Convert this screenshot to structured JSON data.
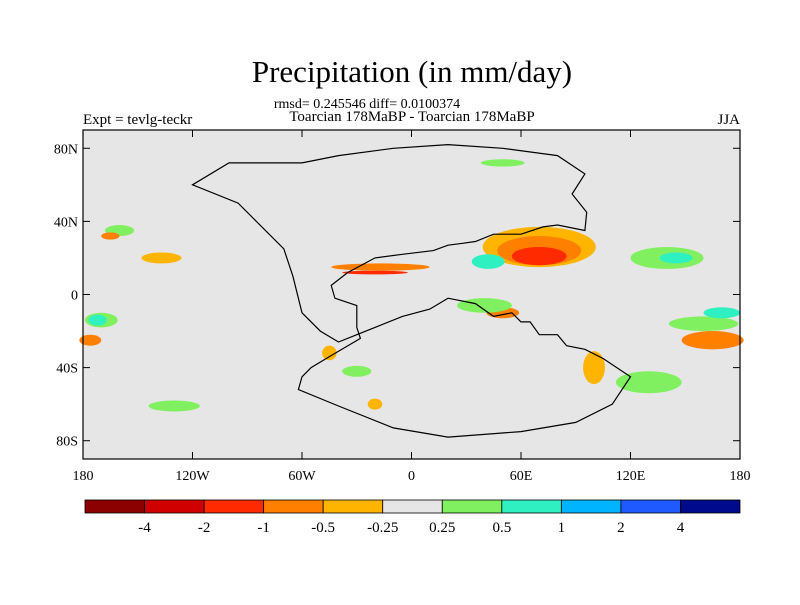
{
  "chart_data": {
    "type": "heatmap",
    "title": "Precipitation (in mm/day)",
    "stats_line": "rmsd= 0.245546 diff= 0.0100374",
    "subtitle": "Toarcian 178MaBP - Toarcian 178MaBP",
    "left_label": "Expt = tevlg-teckr",
    "right_label": "JJA",
    "xlim": [
      -180,
      180
    ],
    "ylim": [
      -90,
      90
    ],
    "x_ticks": [
      {
        "value": -180,
        "label": "180"
      },
      {
        "value": -120,
        "label": "120W"
      },
      {
        "value": -60,
        "label": "60W"
      },
      {
        "value": 0,
        "label": "0"
      },
      {
        "value": 60,
        "label": "60E"
      },
      {
        "value": 120,
        "label": "120E"
      },
      {
        "value": 180,
        "label": "180"
      }
    ],
    "y_ticks": [
      {
        "value": 80,
        "label": "80N"
      },
      {
        "value": 40,
        "label": "40N"
      },
      {
        "value": 0,
        "label": "0"
      },
      {
        "value": -40,
        "label": "40S"
      },
      {
        "value": -80,
        "label": "80S"
      }
    ],
    "colorbar": {
      "colors": [
        "#8b0000",
        "#d10000",
        "#ff2a00",
        "#ff7f00",
        "#ffb400",
        "#e6e6e6",
        "#80f060",
        "#2ef0c0",
        "#00b4ff",
        "#1f5aff",
        "#000a8c"
      ],
      "levels": [
        "-4",
        "-2",
        "-1",
        "-0.5",
        "-0.25",
        "0.25",
        "0.5",
        "1",
        "2",
        "4"
      ]
    },
    "anomaly_regions": [
      {
        "id": "n-atl-neg1",
        "center": [
          -17,
          15
        ],
        "radius": [
          27,
          2
        ],
        "color": "#ff7f00"
      },
      {
        "id": "n-atl-neg2",
        "center": [
          -20,
          12
        ],
        "radius": [
          18,
          1
        ],
        "color": "#ff2a00"
      },
      {
        "id": "n-pac-neg",
        "center": [
          -137,
          20
        ],
        "radius": [
          11,
          3
        ],
        "color": "#ffb400"
      },
      {
        "id": "n-pac-pos",
        "center": [
          -160,
          35
        ],
        "radius": [
          8,
          3
        ],
        "color": "#80f060"
      },
      {
        "id": "tethys-neg1",
        "center": [
          70,
          26
        ],
        "radius": [
          31,
          11
        ],
        "color": "#ffb400"
      },
      {
        "id": "tethys-neg2",
        "center": [
          70,
          24
        ],
        "radius": [
          23,
          8
        ],
        "color": "#ff7f00"
      },
      {
        "id": "tethys-neg3",
        "center": [
          70,
          21
        ],
        "radius": [
          15,
          5
        ],
        "color": "#ff2a00"
      },
      {
        "id": "tethys-pos",
        "center": [
          42,
          18
        ],
        "radius": [
          9,
          4
        ],
        "color": "#2ef0c0"
      },
      {
        "id": "ne-tethys-pos",
        "center": [
          140,
          20
        ],
        "radius": [
          20,
          6
        ],
        "color": "#80f060"
      },
      {
        "id": "ne-tethys-cyan",
        "center": [
          145,
          20
        ],
        "radius": [
          9,
          3
        ],
        "color": "#2ef0c0"
      },
      {
        "id": "trop-neg",
        "center": [
          50,
          -10
        ],
        "radius": [
          9,
          3
        ],
        "color": "#ff7f00"
      },
      {
        "id": "trop-pos",
        "center": [
          40,
          -6
        ],
        "radius": [
          15,
          4
        ],
        "color": "#80f060"
      },
      {
        "id": "s-pac-neg",
        "center": [
          165,
          -25
        ],
        "radius": [
          17,
          5
        ],
        "color": "#ff7f00"
      },
      {
        "id": "s-pac-pos",
        "center": [
          160,
          -16
        ],
        "radius": [
          19,
          4
        ],
        "color": "#80f060"
      },
      {
        "id": "s-pac-cyan",
        "center": [
          170,
          -10
        ],
        "radius": [
          10,
          3
        ],
        "color": "#2ef0c0"
      },
      {
        "id": "w-pac-pos",
        "center": [
          -170,
          -14
        ],
        "radius": [
          9,
          4
        ],
        "color": "#80f060"
      },
      {
        "id": "w-pac-cyan",
        "center": [
          -172,
          -14
        ],
        "radius": [
          5,
          3
        ],
        "color": "#2ef0c0"
      },
      {
        "id": "w-pac-neg",
        "center": [
          -176,
          -25
        ],
        "radius": [
          6,
          3
        ],
        "color": "#ff7f00"
      },
      {
        "id": "s-ind-neg",
        "center": [
          100,
          -40
        ],
        "radius": [
          6,
          9
        ],
        "color": "#ffb400"
      },
      {
        "id": "s-ind-pos",
        "center": [
          130,
          -48
        ],
        "radius": [
          18,
          6
        ],
        "color": "#80f060"
      },
      {
        "id": "s-atl-pos",
        "center": [
          -30,
          -42
        ],
        "radius": [
          8,
          3
        ],
        "color": "#80f060"
      },
      {
        "id": "s-atl-neg",
        "center": [
          -45,
          -32
        ],
        "radius": [
          4,
          4
        ],
        "color": "#ffb400"
      },
      {
        "id": "s-oc-pos",
        "center": [
          -130,
          -61
        ],
        "radius": [
          14,
          3
        ],
        "color": "#80f060"
      },
      {
        "id": "s-oc-neg",
        "center": [
          -20,
          -60
        ],
        "radius": [
          4,
          3
        ],
        "color": "#ffb400"
      },
      {
        "id": "n-pac-neg2",
        "center": [
          -165,
          32
        ],
        "radius": [
          5,
          2
        ],
        "color": "#ff7f00"
      },
      {
        "id": "arctic-pos",
        "center": [
          50,
          72
        ],
        "radius": [
          12,
          2
        ],
        "color": "#80f060"
      }
    ],
    "coastlines": [
      [
        [
          -60,
          72
        ],
        [
          -40,
          76
        ],
        [
          -10,
          80
        ],
        [
          20,
          82
        ],
        [
          50,
          80
        ],
        [
          80,
          76
        ],
        [
          95,
          66
        ],
        [
          88,
          55
        ],
        [
          96,
          45
        ],
        [
          95,
          35
        ],
        [
          80,
          38
        ],
        [
          72,
          37
        ],
        [
          60,
          33
        ],
        [
          45,
          33
        ],
        [
          35,
          29
        ],
        [
          28,
          28
        ],
        [
          20,
          27
        ],
        [
          12,
          24
        ],
        [
          -5,
          22
        ],
        [
          -20,
          20
        ],
        [
          -35,
          12
        ],
        [
          -44,
          5
        ],
        [
          -42,
          -2
        ],
        [
          -30,
          -6
        ],
        [
          -30,
          -18
        ],
        [
          -28,
          -24
        ],
        [
          -45,
          -34
        ],
        [
          -55,
          -40
        ],
        [
          -60,
          -45
        ],
        [
          -62,
          -52
        ],
        [
          -40,
          -61
        ],
        [
          -10,
          -73
        ],
        [
          20,
          -78
        ],
        [
          60,
          -75
        ],
        [
          90,
          -70
        ],
        [
          110,
          -60
        ],
        [
          120,
          -45
        ],
        [
          105,
          -35
        ],
        [
          95,
          -30
        ],
        [
          85,
          -28
        ],
        [
          80,
          -22
        ],
        [
          70,
          -22
        ],
        [
          65,
          -15
        ],
        [
          60,
          -15
        ],
        [
          55,
          -10
        ],
        [
          45,
          -12
        ],
        [
          35,
          -5
        ],
        [
          20,
          -2
        ],
        [
          10,
          -8
        ],
        [
          -5,
          -12
        ],
        [
          -20,
          -18
        ],
        [
          -30,
          -22
        ],
        [
          -40,
          -26
        ],
        [
          -50,
          -20
        ],
        [
          -60,
          -10
        ],
        [
          -65,
          10
        ],
        [
          -70,
          25
        ],
        [
          -85,
          40
        ],
        [
          -95,
          50
        ],
        [
          -120,
          60
        ],
        [
          -100,
          72
        ],
        [
          -60,
          72
        ]
      ]
    ]
  }
}
